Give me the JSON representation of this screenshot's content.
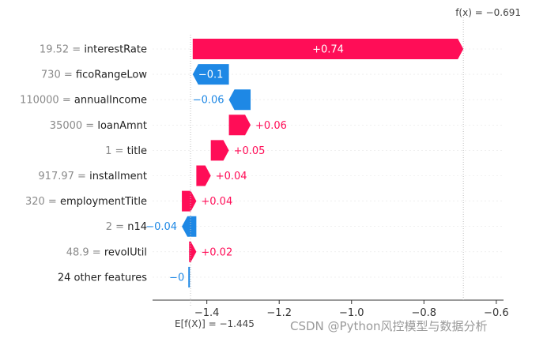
{
  "chart_data": {
    "type": "waterfall",
    "base_value_label": "E[f(X)] = −1.445",
    "output_value_label": "f(x) = −0.691",
    "base_value": -1.445,
    "output_value": -0.691,
    "xlim": [
      -1.55,
      -0.58
    ],
    "xticks": [
      -1.4,
      -1.2,
      -1.0,
      -0.8,
      -0.6
    ],
    "xtick_labels": [
      "−1.4",
      "−1.2",
      "−1.0",
      "−0.8",
      "−0.6"
    ],
    "features": [
      {
        "value": "19.52",
        "name": "interestRate",
        "label": "+0.74",
        "contribution": 0.74
      },
      {
        "value": "730",
        "name": "ficoRangeLow",
        "label": "−0.1",
        "contribution": -0.1
      },
      {
        "value": "110000",
        "name": "annualIncome",
        "label": "−0.06",
        "contribution": -0.06
      },
      {
        "value": "35000",
        "name": "loanAmnt",
        "label": "+0.06",
        "contribution": 0.06
      },
      {
        "value": "1",
        "name": "title",
        "label": "+0.05",
        "contribution": 0.05
      },
      {
        "value": "917.97",
        "name": "installment",
        "label": "+0.04",
        "contribution": 0.04
      },
      {
        "value": "320",
        "name": "employmentTitle",
        "label": "+0.04",
        "contribution": 0.04
      },
      {
        "value": "2",
        "name": "n14",
        "label": "−0.04",
        "contribution": -0.04
      },
      {
        "value": "48.9",
        "name": "revolUtil",
        "label": "+0.02",
        "contribution": 0.02
      },
      {
        "value": "",
        "name": "24 other features",
        "label": "−0",
        "contribution": -0.004
      }
    ],
    "colors": {
      "positive": "#ff0d57",
      "negative": "#1e88e5"
    }
  },
  "watermark": "CSDN @Python风控模型与数据分析"
}
